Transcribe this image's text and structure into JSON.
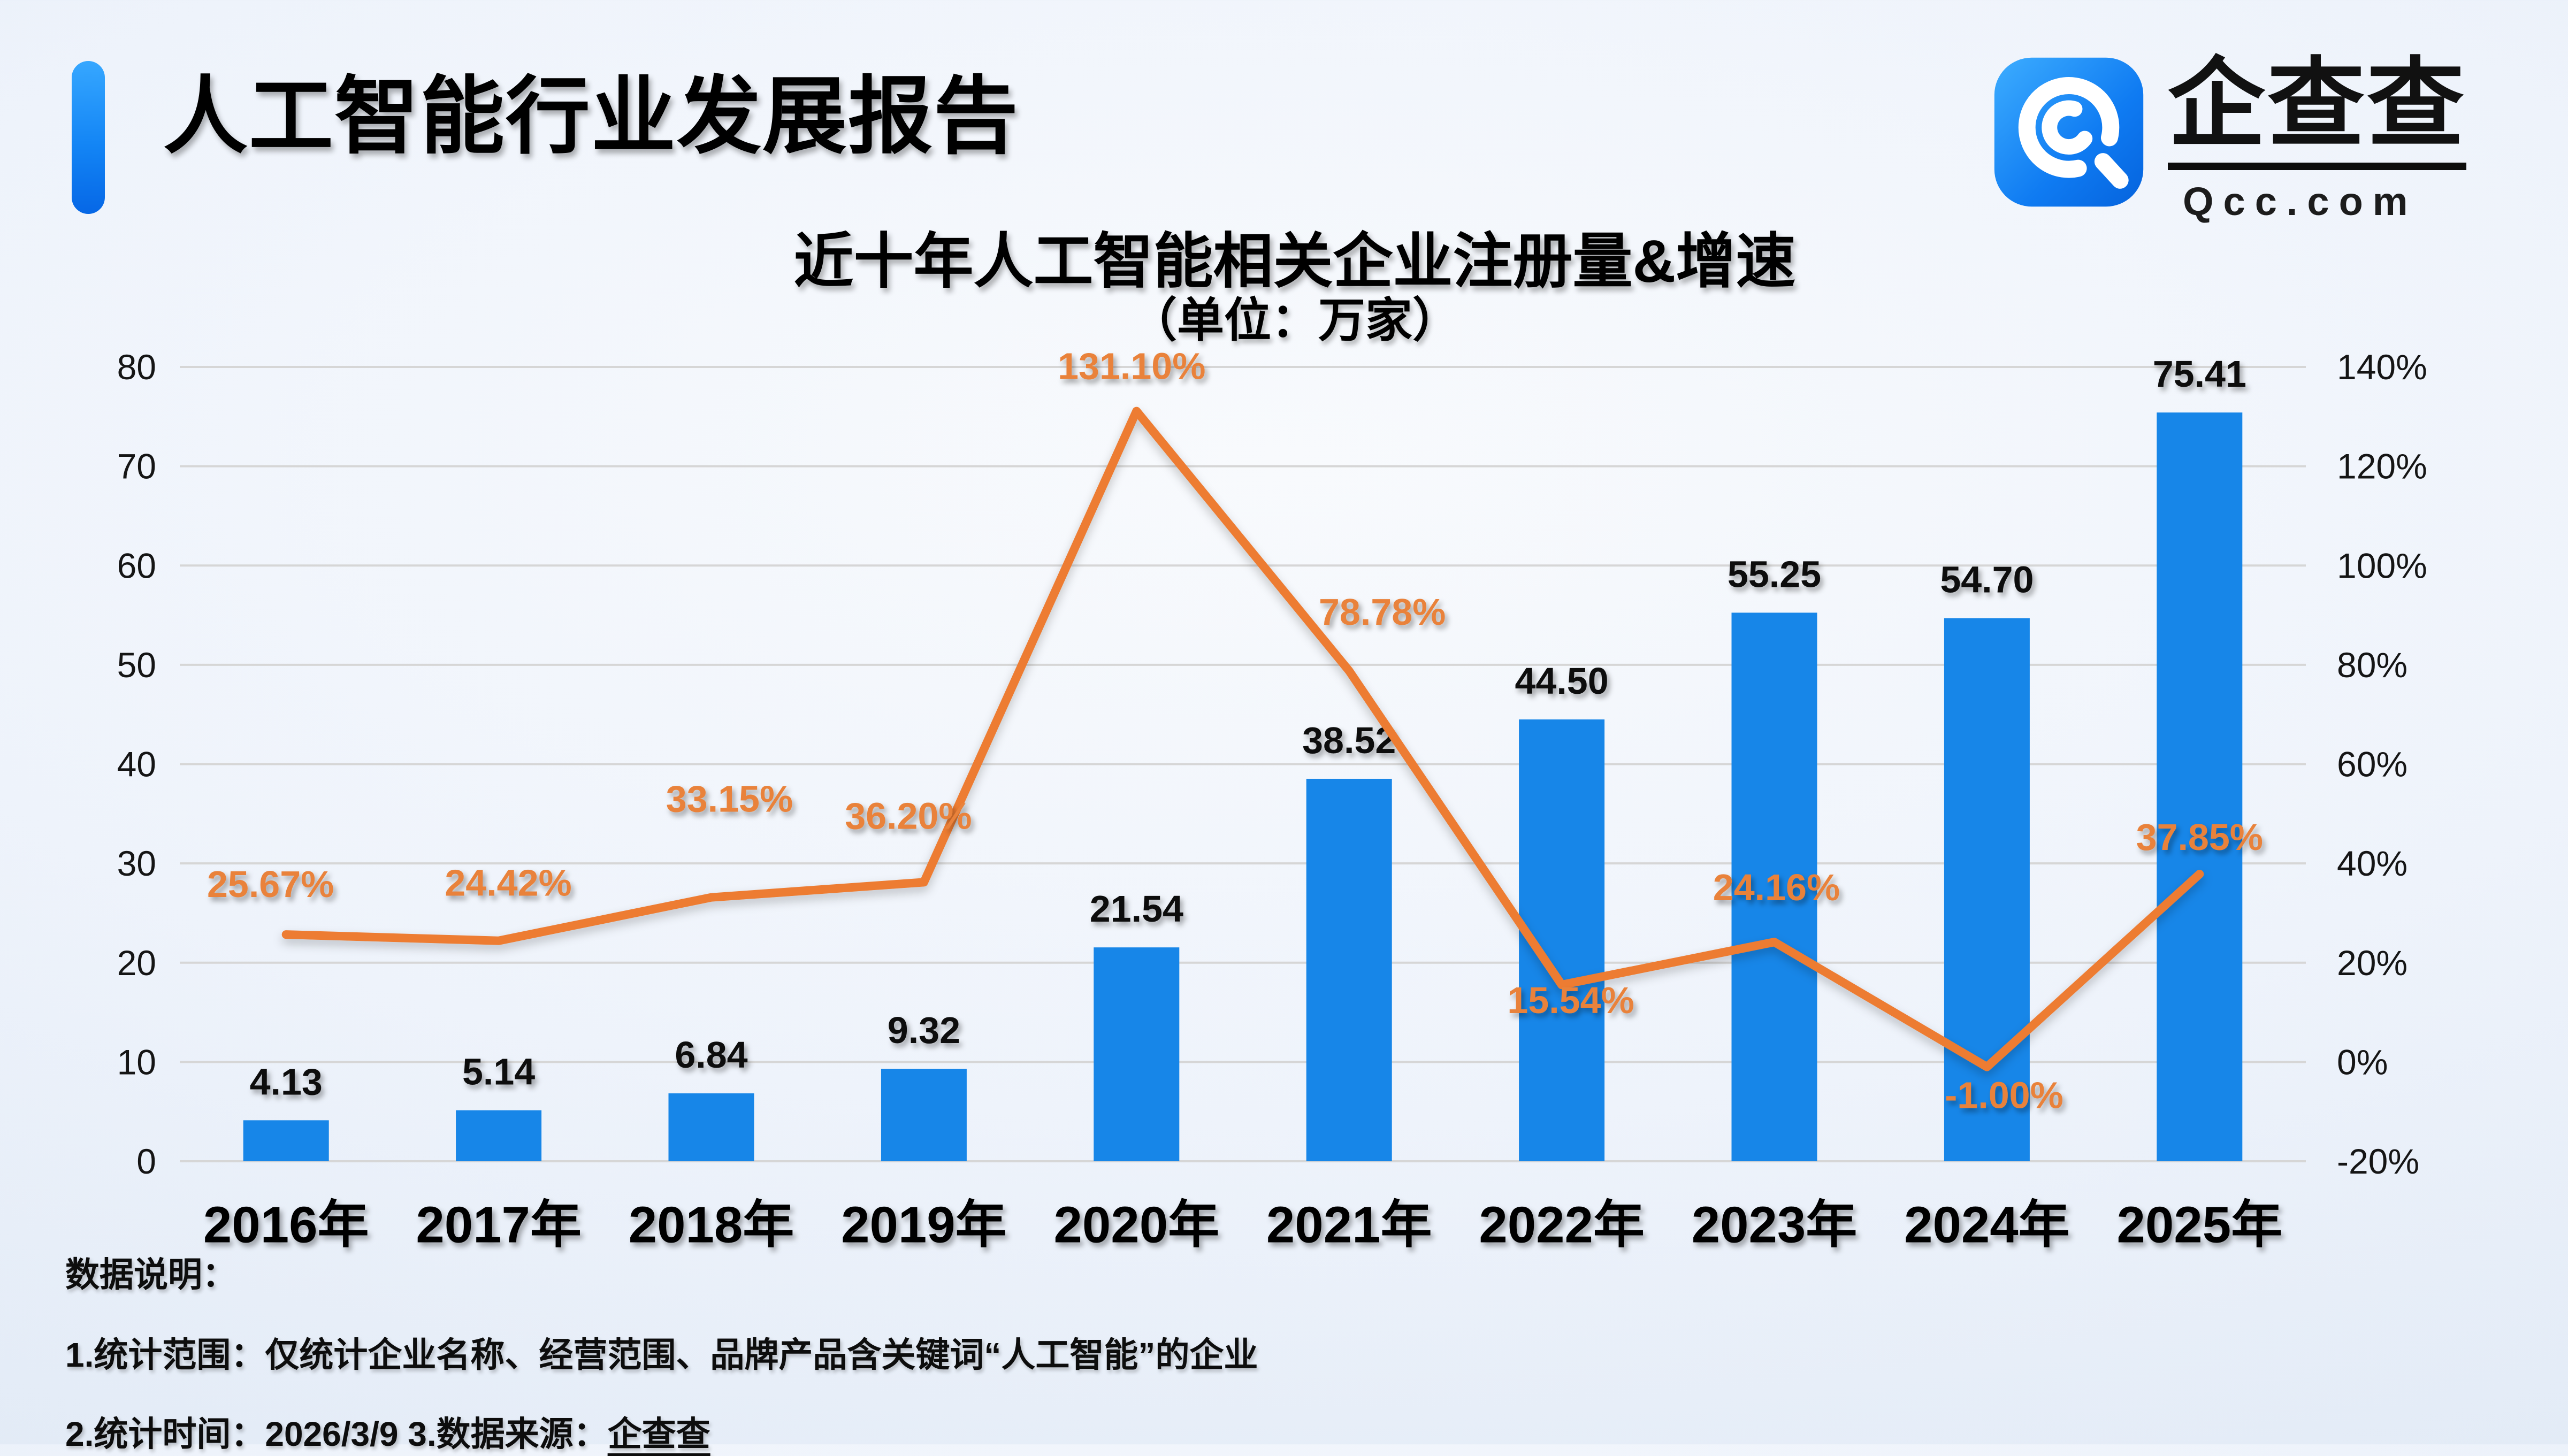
{
  "header": {
    "title": "人工智能行业发展报告"
  },
  "logo": {
    "brand": "企查查",
    "domain": "Qcc.com",
    "icon": "qcc-magnifier-icon",
    "icon_color": "#0f7bf2"
  },
  "chart_data": {
    "type": "bar",
    "title": "近十年人工智能相关企业注册量&增速",
    "subtitle": "（单位：万家）",
    "categories": [
      "2016年",
      "2017年",
      "2018年",
      "2019年",
      "2020年",
      "2021年",
      "2022年",
      "2023年",
      "2024年",
      "2025年"
    ],
    "series": [
      {
        "name": "注册量",
        "type": "bar",
        "values": [
          4.13,
          5.14,
          6.84,
          9.32,
          21.54,
          38.52,
          44.5,
          55.25,
          54.7,
          75.41
        ],
        "color": "#1786E8"
      },
      {
        "name": "增速",
        "type": "line",
        "values_pct": [
          25.67,
          24.42,
          33.15,
          36.2,
          131.1,
          78.78,
          15.54,
          24.16,
          -1.0,
          37.85
        ],
        "color": "#ED7C31"
      }
    ],
    "bar_labels": [
      "4.13",
      "5.14",
      "6.84",
      "9.32",
      "21.54",
      "38.52",
      "44.50",
      "55.25",
      "54.70",
      "75.41"
    ],
    "line_labels": [
      "25.67%",
      "24.42%",
      "33.15%",
      "36.20%",
      "131.10%",
      "78.78%",
      "15.54%",
      "24.16%",
      "-1.00%",
      "37.85%"
    ],
    "left_axis": {
      "ticks": [
        "80",
        "70",
        "60",
        "50",
        "40",
        "30",
        "20",
        "10",
        "0"
      ],
      "min": 0,
      "max": 80
    },
    "right_axis": {
      "ticks": [
        "140%",
        "120%",
        "100%",
        "80%",
        "60%",
        "40%",
        "20%",
        "0%",
        "-20%"
      ],
      "min": -20,
      "max": 140
    },
    "grid": true,
    "legend": "none",
    "label_color_bar": "#101010",
    "label_color_line": "#E9823A",
    "gridline_color": "#d6d6d6"
  },
  "footer": {
    "heading": "数据说明：",
    "note1": "1.统计范围：仅统计企业名称、经营范围、品牌产品含关键词“人工智能”的企业",
    "note2_prefix": "2.统计时间：2026/3/9  3.数据来源：",
    "note2_source": "企查查"
  }
}
